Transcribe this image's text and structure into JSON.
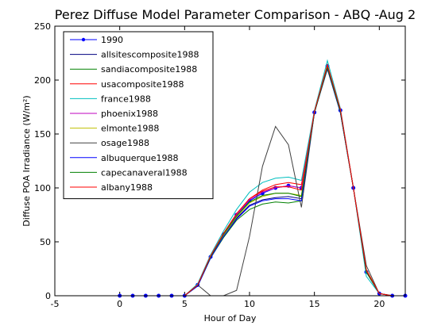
{
  "chart_data": {
    "type": "line",
    "title": "Perez Diffuse Model Parameter Comparison - ABQ -Aug 2",
    "xlabel": "Hour of Day",
    "ylabel": "Diffuse POA Irradiance (W/m²)",
    "xlim": [
      -5,
      22
    ],
    "ylim": [
      0,
      250
    ],
    "xticks": [
      "-5",
      "0",
      "5",
      "10",
      "15",
      "20"
    ],
    "yticks": [
      "0",
      "50",
      "100",
      "150",
      "200",
      "250"
    ],
    "grid": false,
    "legend_position": "top-left",
    "series": [
      {
        "name": "1990",
        "color": "#0000ff",
        "marker": "dot",
        "x": [
          0,
          1,
          2,
          3,
          4,
          5,
          6,
          7,
          8,
          9,
          10,
          11,
          12,
          13,
          14,
          15,
          16,
          17,
          18,
          19,
          20,
          21,
          22
        ],
        "y": [
          0,
          0,
          0,
          0,
          0,
          0,
          10,
          36,
          57,
          75,
          88,
          95,
          100,
          102,
          100,
          170,
          213,
          172,
          100,
          22,
          2,
          0,
          0
        ]
      },
      {
        "name": "allsitescomposite1988",
        "color": "#000080",
        "x": [
          5,
          6,
          7,
          8,
          9,
          10,
          11,
          12,
          13,
          14,
          15,
          16,
          17,
          18,
          19,
          20,
          21
        ],
        "y": [
          0,
          9,
          35,
          55,
          72,
          84,
          89,
          91,
          92,
          90,
          170,
          212,
          171,
          100,
          23,
          2,
          0
        ]
      },
      {
        "name": "sandiacomposite1988",
        "color": "#008000",
        "x": [
          5,
          6,
          7,
          8,
          9,
          10,
          11,
          12,
          13,
          14,
          15,
          16,
          17,
          18,
          19,
          20,
          21
        ],
        "y": [
          0,
          9,
          35,
          54,
          70,
          80,
          85,
          87,
          86,
          88,
          170,
          211,
          170,
          100,
          24,
          2,
          0
        ]
      },
      {
        "name": "usacomposite1988",
        "color": "#ff0000",
        "x": [
          5,
          6,
          7,
          8,
          9,
          10,
          11,
          12,
          13,
          14,
          15,
          16,
          17,
          18,
          19,
          20,
          21
        ],
        "y": [
          0,
          10,
          36,
          57,
          76,
          90,
          98,
          103,
          105,
          103,
          171,
          214,
          173,
          100,
          24,
          2,
          0
        ]
      },
      {
        "name": "france1988",
        "color": "#00bfbf",
        "x": [
          5,
          6,
          7,
          8,
          9,
          10,
          11,
          12,
          13,
          14,
          15,
          16,
          17,
          18,
          19,
          20,
          21
        ],
        "y": [
          0,
          11,
          38,
          60,
          80,
          96,
          105,
          109,
          110,
          107,
          172,
          218,
          174,
          100,
          18,
          2,
          0
        ]
      },
      {
        "name": "phoenix1988",
        "color": "#bf00bf",
        "x": [
          5,
          6,
          7,
          8,
          9,
          10,
          11,
          12,
          13,
          14,
          15,
          16,
          17,
          18,
          19,
          20,
          21
        ],
        "y": [
          0,
          10,
          36,
          57,
          75,
          89,
          96,
          100,
          102,
          100,
          170,
          213,
          172,
          100,
          23,
          2,
          0
        ]
      },
      {
        "name": "elmonte1988",
        "color": "#bfbf00",
        "x": [
          5,
          6,
          7,
          8,
          9,
          10,
          11,
          12,
          13,
          14,
          15,
          16,
          17,
          18,
          19,
          20,
          21
        ],
        "y": [
          0,
          10,
          36,
          56,
          73,
          86,
          92,
          95,
          95,
          93,
          170,
          212,
          171,
          100,
          24,
          2,
          0
        ]
      },
      {
        "name": "osage1988",
        "color": "#404040",
        "x": [
          5,
          6,
          7,
          8,
          9,
          10,
          11,
          12,
          13,
          14,
          15,
          16,
          17,
          18,
          19,
          20,
          21
        ],
        "y": [
          0,
          10,
          0,
          0,
          5,
          55,
          120,
          157,
          140,
          82,
          170,
          210,
          170,
          100,
          28,
          2,
          0
        ]
      },
      {
        "name": "albuquerque1988",
        "color": "#0000ff",
        "x": [
          5,
          6,
          7,
          8,
          9,
          10,
          11,
          12,
          13,
          14,
          15,
          16,
          17,
          18,
          19,
          20,
          21
        ],
        "y": [
          0,
          9,
          35,
          55,
          71,
          83,
          88,
          90,
          90,
          88,
          170,
          211,
          170,
          100,
          22,
          2,
          0
        ]
      },
      {
        "name": "capecanaveral1988",
        "color": "#008000",
        "x": [
          5,
          6,
          7,
          8,
          9,
          10,
          11,
          12,
          13,
          14,
          15,
          16,
          17,
          18,
          19,
          20,
          21
        ],
        "y": [
          0,
          10,
          36,
          57,
          74,
          87,
          93,
          95,
          95,
          92,
          170,
          212,
          171,
          100,
          22,
          2,
          0
        ]
      },
      {
        "name": "albany1988",
        "color": "#ff0000",
        "x": [
          5,
          6,
          7,
          8,
          9,
          10,
          11,
          12,
          13,
          14,
          15,
          16,
          17,
          18,
          19,
          20,
          21
        ],
        "y": [
          0,
          10,
          37,
          58,
          76,
          90,
          97,
          101,
          101,
          98,
          171,
          214,
          173,
          100,
          24,
          2,
          0
        ]
      }
    ]
  }
}
